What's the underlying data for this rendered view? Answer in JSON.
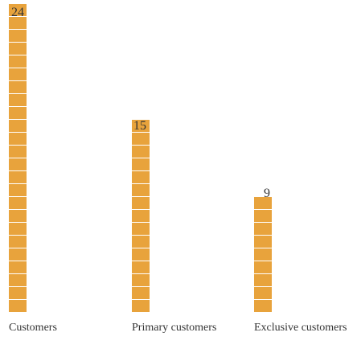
{
  "chart_data": {
    "type": "bar",
    "categories": [
      "Customers",
      "Primary customers",
      "Exclusive customers"
    ],
    "values": [
      24,
      15,
      9
    ],
    "data_labels": [
      "24",
      "15",
      "9"
    ],
    "bar_color": "#e8a33c",
    "label_color": "#333333",
    "title": "",
    "xlabel": "",
    "ylabel": "",
    "grid": false,
    "legend": "none"
  }
}
